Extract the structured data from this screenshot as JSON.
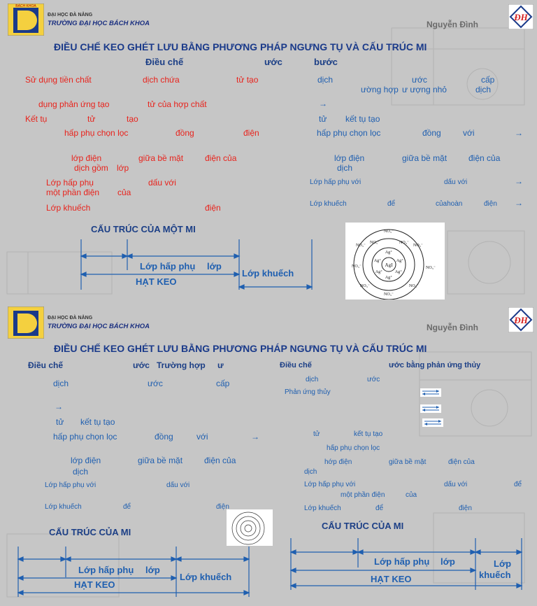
{
  "header": {
    "university_small": "ĐẠI HỌC ĐÀ NẴNG",
    "university_main": "TRƯỜNG ĐẠI HỌC BÁCH KHOA",
    "logo_text": "BÁCH KHOA",
    "logo_side": "ĐÀ NẴNG",
    "author": "Nguyễn Đình"
  },
  "slide1": {
    "title": "ĐIỀU CHẾ KEO GHÉT LƯU BẰNG PHƯƠNG PHÁP NGƯNG TỤ VÀ CẤU TRÚC MI",
    "sub_dieu_che": "Điều chế",
    "sub_uoc": "ước",
    "sub_buoc": "bước",
    "left": {
      "l1a": "Sử dụng tiền chất",
      "l1b": "dịch chứa",
      "l1c": "tử tạo",
      "l2a": "dụng phản ứng tạo",
      "l2b": "tử của hợp chất",
      "l3a": "Kết tụ",
      "l3b": "tử",
      "l3c": "tạo",
      "l4a": "hấp phụ chọn lọc",
      "l4b": "đồng",
      "l4c": "điện",
      "l5a": "lớp điện",
      "l5b": "giữa bề mặt",
      "l5c": "điện của",
      "l6a": "dịch gồm",
      "l6b": "lớp",
      "l7a": "Lớp hấp phụ",
      "l7b": "dấu với",
      "l8a": "một phần điện",
      "l8b": "của",
      "l9a": "Lớp khuếch",
      "l9b": "điện"
    },
    "right": {
      "r1a": "dịch",
      "r1b": "ước",
      "r1c": "cấp",
      "r2a": "ường hợp",
      "r2b": "ư ượng nhỏ",
      "r2c": "dịch",
      "r3": "→",
      "r4a": "tử",
      "r4b": "kết tụ tạo",
      "r5a": "hấp phụ chọn lọc",
      "r5b": "đồng",
      "r5c": "với",
      "r5d": "→",
      "r6a": "lớp điện",
      "r6b": "giữa bề mặt",
      "r6c": "điện của",
      "r7": "dịch",
      "r8a": "Lớp hấp phụ với",
      "r8b": "dấu với",
      "r8c": "→",
      "r9a": "Lớp khuếch",
      "r9b": "để",
      "r9c": "củahoàn",
      "r9d": "điện",
      "r9e": "→"
    },
    "structure_title": "CẤU TRÚC CỦA MỘT MI",
    "lop_hap_phu": "Lớp hấp phụ",
    "lop": "lớp",
    "lop_khuech": "Lớp khuếch",
    "hat_keo": "HẠT KEO",
    "micelle_core": "AgI",
    "micelle_ion_outer": "NO₃⁻",
    "micelle_ion_inner": "Ag⁺"
  },
  "slide2": {
    "title": "ĐIỀU CHẾ KEO GHÉT LƯU BẰNG PHƯƠNG PHÁP NGƯNG TỤ VÀ CẤU TRÚC MI",
    "left": {
      "h1": "Điều chế",
      "h2": "ước",
      "h3": "Trường hợp",
      "h4": "ư",
      "a1": "dịch",
      "a2": "ước",
      "a3": "cấp",
      "a4": "→",
      "a5": "tử",
      "a6": "kết tụ tạo",
      "a7": "hấp phụ chọn lọc",
      "a8": "đồng",
      "a9": "với",
      "a10": "→",
      "a11": "lớp điện",
      "a12": "giữa bề mặt",
      "a13": "điện của",
      "a14": "dịch",
      "a15": "Lớp hấp phụ với",
      "a16": "dấu với",
      "a17": "Lớp khuếch",
      "a18": "để",
      "a19": "điện",
      "structure_title": "CẤU TRÚC CỦA MI",
      "lop_hap_phu": "Lớp hấp phụ",
      "lop": "lớp",
      "lop_khuech": "Lớp khuếch",
      "hat_keo": "HẠT KEO"
    },
    "right": {
      "h1": "Điều chế",
      "h2": "ước bằng phản ứng thủy",
      "b1": "dịch",
      "b2": "ước",
      "b3": "Phản ứng thủy",
      "b4": "tử",
      "b5": "kết tụ tạo",
      "b6": "hấp phụ chọn lọc",
      "b7": "hớp điện",
      "b8": "giữa bề mặt",
      "b9": "điện của",
      "b10": "dịch",
      "b11": "Lớp hấp phụ với",
      "b12": "dấu với",
      "b13": "để",
      "b14": "một phần điện",
      "b15": "của",
      "b16": "Lớp khuếch",
      "b17": "để",
      "b18": "điện",
      "structure_title": "CẤU TRÚC CỦA MI",
      "lop_hap_phu": "Lớp hấp phụ",
      "lop": "lớp",
      "lop_khuech_1": "Lớp",
      "lop_khuech_2": "khuếch",
      "hat_keo": "HẠT KEO"
    }
  },
  "colors": {
    "red": "#e8231c",
    "blue": "#1f5fb0",
    "navy": "#1c3f86",
    "background": "#c6c6c6"
  },
  "icons": [
    "university-logo-icon",
    "monogram-logo-icon",
    "equilibrium-arrows-icon",
    "micelle-figure"
  ]
}
